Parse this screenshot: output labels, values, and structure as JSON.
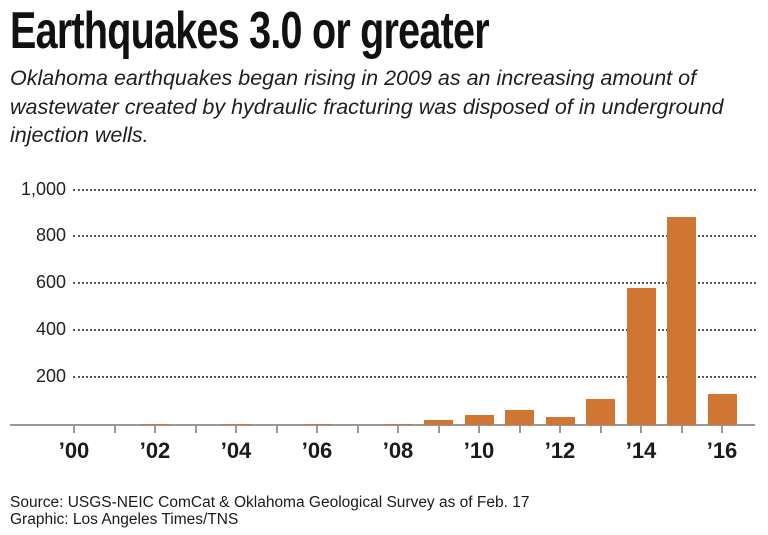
{
  "title": "Earthquakes 3.0 or greater",
  "subtitle": "Oklahoma earthquakes began rising in 2009 as an increasing amount of wastewater created by hydraulic fracturing was disposed of in underground injection wells.",
  "footer": {
    "source": "Source: USGS-NEIC ComCat & Oklahoma Geological Survey as of Feb. 17",
    "credit": "Graphic: Los Angeles Times/TNS"
  },
  "colors": {
    "bar": "#D07634",
    "grid": "#555555",
    "axis": "#999999"
  },
  "y_ticks": [
    "1,000",
    "800",
    "600",
    "400",
    "200"
  ],
  "x_ticks": [
    "'00",
    "'02",
    "'04",
    "'06",
    "'08",
    "'10",
    "'12",
    "'14",
    "'16"
  ],
  "chart_data": {
    "type": "bar",
    "title": "Earthquakes 3.0 or greater",
    "subtitle": "Oklahoma earthquakes began rising in 2009 as an increasing amount of wastewater created by hydraulic fracturing was disposed of in underground injection wells.",
    "xlabel": "",
    "ylabel": "",
    "categories": [
      "2000",
      "2001",
      "2002",
      "2003",
      "2004",
      "2005",
      "2006",
      "2007",
      "2008",
      "2009",
      "2010",
      "2011",
      "2012",
      "2013",
      "2014",
      "2015",
      "2016"
    ],
    "values": [
      0,
      0,
      2,
      0,
      1,
      0,
      1,
      0,
      1,
      20,
      42,
      63,
      35,
      109,
      584,
      888,
      131
    ],
    "x_tick_labels": [
      "'00",
      "'02",
      "'04",
      "'06",
      "'08",
      "'10",
      "'12",
      "'14",
      "'16"
    ],
    "y_tick_labels": [
      "200",
      "400",
      "600",
      "800",
      "1,000"
    ],
    "ylim": [
      0,
      1000
    ],
    "grid": true,
    "grid_style": "dotted horizontal",
    "legend": null,
    "bar_color": "#D07634",
    "source": "Source: USGS-NEIC ComCat & Oklahoma Geological Survey as of Feb. 17",
    "credit": "Graphic: Los Angeles Times/TNS"
  }
}
